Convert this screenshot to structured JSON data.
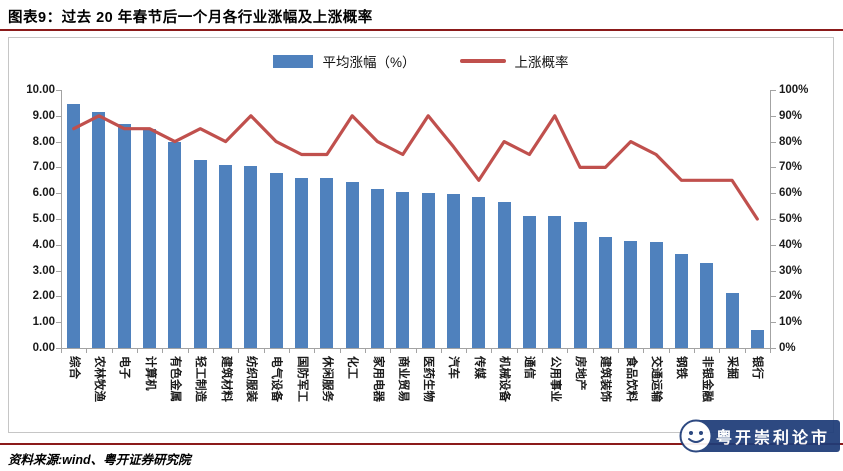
{
  "header": {
    "title": "图表9：过去 20 年春节后一个月各行业涨幅及上涨概率"
  },
  "legend": {
    "bar_label": "平均涨幅（%）",
    "line_label": "上涨概率"
  },
  "chart_data": {
    "type": "bar",
    "title": "过去 20 年春节后一个月各行业涨幅及上涨概率",
    "categories": [
      "综合",
      "农林牧渔",
      "电子",
      "计算机",
      "有色金属",
      "轻工制造",
      "建筑材料",
      "纺织服装",
      "电气设备",
      "国防军工",
      "休闲服务",
      "化工",
      "家用电器",
      "商业贸易",
      "医药生物",
      "汽车",
      "传媒",
      "机械设备",
      "通信",
      "公用事业",
      "房地产",
      "建筑装饰",
      "食品饮料",
      "交通运输",
      "钢铁",
      "非银金融",
      "采掘",
      "银行"
    ],
    "series": [
      {
        "name": "平均涨幅（%）",
        "type": "bar",
        "axis": "left",
        "color": "#4f81bd",
        "values": [
          9.45,
          9.15,
          8.7,
          8.5,
          8.0,
          7.3,
          7.1,
          7.05,
          6.8,
          6.6,
          6.6,
          6.45,
          6.15,
          6.05,
          6.0,
          5.95,
          5.85,
          5.65,
          5.1,
          5.1,
          4.9,
          4.3,
          4.15,
          4.1,
          3.65,
          3.3,
          2.15,
          0.7
        ]
      },
      {
        "name": "上涨概率",
        "type": "line",
        "axis": "right",
        "color": "#c0504d",
        "unit": "%",
        "values": [
          85,
          90,
          85,
          85,
          80,
          85,
          80,
          90,
          80,
          75,
          75,
          90,
          80,
          75,
          90,
          78,
          65,
          80,
          75,
          90,
          70,
          70,
          80,
          75,
          65,
          65,
          65,
          50
        ]
      }
    ],
    "left_axis": {
      "min": 0,
      "max": 10,
      "step": 1,
      "ticks": [
        "0.00",
        "1.00",
        "2.00",
        "3.00",
        "4.00",
        "5.00",
        "6.00",
        "7.00",
        "8.00",
        "9.00",
        "10.00"
      ]
    },
    "right_axis": {
      "min": 0,
      "max": 100,
      "step": 10,
      "ticks": [
        "0%",
        "10%",
        "20%",
        "30%",
        "40%",
        "50%",
        "60%",
        "70%",
        "80%",
        "90%",
        "100%"
      ]
    },
    "legend_position": "top-center",
    "grid": false
  },
  "footer": {
    "source": "资料来源:wind、粤开证券研究院"
  },
  "watermark": {
    "text": "粤开崇利论市"
  },
  "colors": {
    "bar": "#4f81bd",
    "line": "#c0504d",
    "rule": "#8b1a1a",
    "axis": "#a3a3a3",
    "watermark_bg": "#1e3c78"
  }
}
